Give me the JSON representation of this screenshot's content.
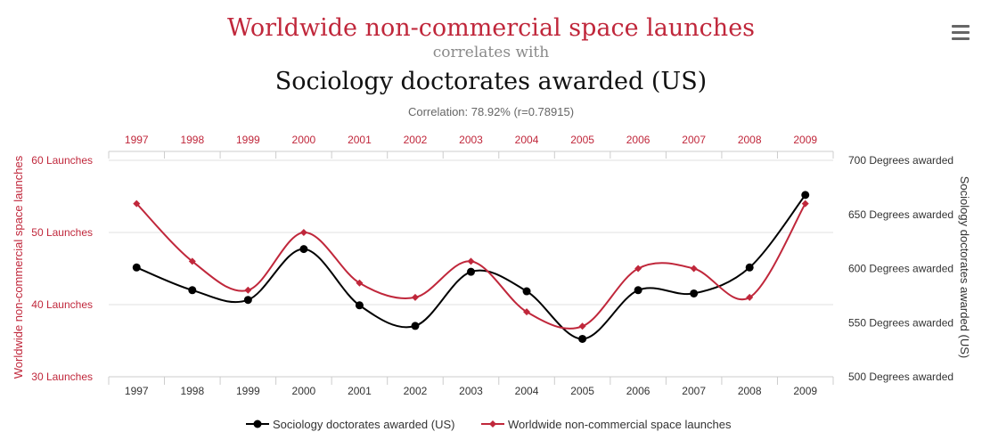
{
  "menu_icon": "hamburger-menu-icon",
  "chart_data": {
    "type": "line",
    "title": "Worldwide non-commercial space launches",
    "connector": "correlates with",
    "subtitle": "Sociology doctorates awarded (US)",
    "correlation_text": "Correlation: 78.92% (r=0.78915)",
    "categories": [
      "1997",
      "1998",
      "1999",
      "2000",
      "2001",
      "2002",
      "2003",
      "2004",
      "2005",
      "2006",
      "2007",
      "2008",
      "2009"
    ],
    "y_left": {
      "label": "Worldwide non-commercial space launches",
      "range": [
        30,
        60
      ],
      "ticks": [
        30,
        40,
        50,
        60
      ],
      "tick_suffix": " Launches",
      "tick_labels": [
        "30 Launches",
        "40 Launches",
        "50 Launches",
        "60 Launches"
      ]
    },
    "y_right": {
      "label": "Sociology doctorates awarded (US)",
      "range": [
        500,
        700
      ],
      "ticks": [
        500,
        550,
        600,
        650,
        700
      ],
      "tick_suffix": " Degrees awarded",
      "tick_labels": [
        "500 Degrees awarded",
        "550 Degrees awarded",
        "600 Degrees awarded",
        "650 Degrees awarded",
        "700 Degrees awarded"
      ]
    },
    "series": [
      {
        "name": "Sociology doctorates awarded (US)",
        "axis": "right",
        "color": "#000000",
        "values": [
          601,
          580,
          571,
          618,
          566,
          547,
          597,
          579,
          535,
          580,
          577,
          601,
          668
        ]
      },
      {
        "name": "Worldwide non-commercial space launches",
        "axis": "left",
        "color": "#c0273b",
        "values": [
          54,
          46,
          42,
          50,
          43,
          41,
          46,
          39,
          37,
          45,
          45,
          41,
          54
        ]
      }
    ],
    "legend_position": "bottom-center",
    "grid": "horizontal"
  }
}
